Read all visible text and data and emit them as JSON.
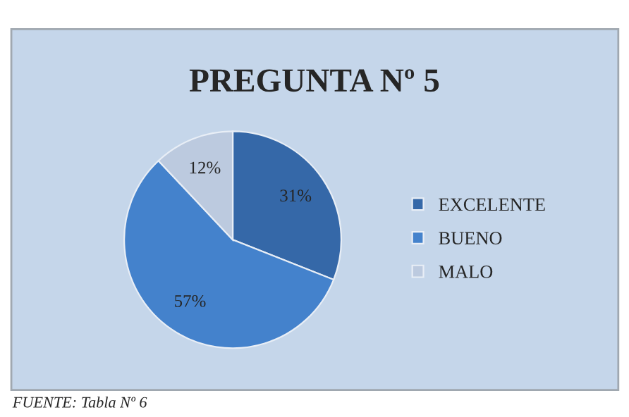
{
  "chart_data": {
    "type": "pie",
    "title": "PREGUNTA Nº 5",
    "categories": [
      "EXCELENTE",
      "BUENO",
      "MALO"
    ],
    "values": [
      31,
      57,
      12
    ],
    "colors": [
      "#3568a8",
      "#4482cc",
      "#bccadf"
    ],
    "value_labels": [
      "31%",
      "57%",
      "12%"
    ],
    "legend": "right",
    "annotations": [
      "FUENTE: Tabla Nº 6"
    ]
  }
}
